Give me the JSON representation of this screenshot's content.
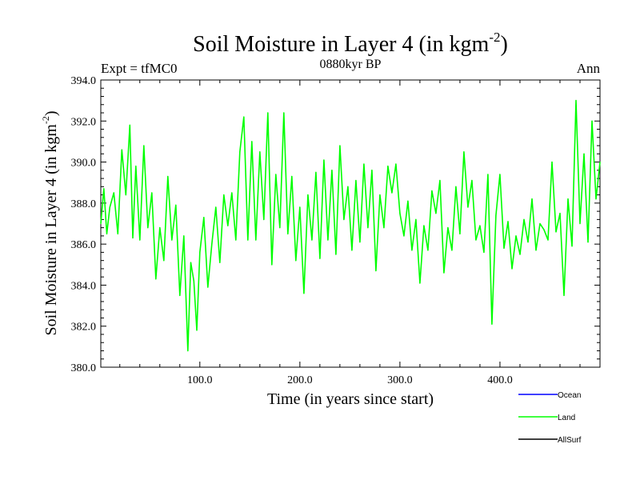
{
  "chart_data": {
    "type": "line",
    "title": "Soil Moisture in Layer 4 (in kgm",
    "title_sup": "-2",
    "title_close": ")",
    "subtitle": "0880kyr BP",
    "left_label": "Expt = tfMC0",
    "right_label": "Ann",
    "xlabel": "Time (in years since start)",
    "ylabel": "Soil Moisture in Layer 4 (in kgm",
    "ylabel_sup": "-2",
    "ylabel_close": ")",
    "xlim": [
      1,
      500
    ],
    "ylim": [
      380,
      394
    ],
    "x_ticks": [
      {
        "value": 100,
        "label": "100.0"
      },
      {
        "value": 200,
        "label": "200.0"
      },
      {
        "value": 300,
        "label": "300.0"
      },
      {
        "value": 400,
        "label": "400.0"
      }
    ],
    "y_ticks": [
      {
        "value": 380,
        "label": "380.0"
      },
      {
        "value": 382,
        "label": "382.0"
      },
      {
        "value": 384,
        "label": "384.0"
      },
      {
        "value": 386,
        "label": "386.0"
      },
      {
        "value": 388,
        "label": "388.0"
      },
      {
        "value": 390,
        "label": "390.0"
      },
      {
        "value": 392,
        "label": "392.0"
      },
      {
        "value": 394,
        "label": "394.0"
      }
    ],
    "legend": [
      {
        "name": "Ocean",
        "color": "#0000ff"
      },
      {
        "name": "Land",
        "color": "#00ff00"
      },
      {
        "name": "AllSurf",
        "color": "#000000"
      }
    ],
    "series": [
      {
        "name": "Land",
        "color": "#00ff00",
        "x": [
          1,
          4,
          7,
          10,
          14,
          18,
          22,
          26,
          30,
          33,
          36,
          40,
          44,
          48,
          52,
          56,
          60,
          64,
          68,
          72,
          76,
          80,
          84,
          88,
          91,
          94,
          97,
          100,
          104,
          108,
          112,
          116,
          120,
          124,
          128,
          132,
          136,
          140,
          144,
          148,
          152,
          156,
          160,
          164,
          168,
          172,
          176,
          180,
          184,
          188,
          192,
          196,
          200,
          204,
          208,
          212,
          216,
          220,
          224,
          228,
          232,
          236,
          240,
          244,
          248,
          252,
          256,
          260,
          264,
          268,
          272,
          276,
          280,
          284,
          288,
          292,
          296,
          300,
          304,
          308,
          312,
          316,
          320,
          324,
          328,
          332,
          336,
          340,
          344,
          348,
          352,
          356,
          360,
          364,
          368,
          372,
          376,
          380,
          384,
          388,
          392,
          396,
          400,
          404,
          408,
          412,
          416,
          420,
          424,
          428,
          432,
          436,
          440,
          444,
          448,
          452,
          456,
          460,
          464,
          468,
          472,
          476,
          480,
          484,
          488,
          492,
          496,
          500
        ],
        "values": [
          387,
          388.7,
          386.5,
          387.8,
          388.5,
          386.5,
          390.6,
          388.4,
          391.8,
          386.3,
          389.8,
          386.2,
          390.8,
          386.8,
          388.5,
          384.3,
          386.8,
          385.2,
          389.3,
          386.2,
          387.9,
          383.5,
          386.4,
          380.8,
          385.1,
          384.2,
          381.8,
          385.6,
          387.3,
          383.9,
          386,
          387.8,
          385.1,
          388.4,
          386.9,
          388.5,
          386.2,
          390.5,
          392.2,
          386.2,
          391,
          386.2,
          390.5,
          387.2,
          392.4,
          385,
          389.4,
          386.8,
          392.4,
          386.5,
          389.3,
          385.2,
          387.8,
          383.6,
          388.4,
          386.2,
          389.5,
          385.3,
          390.1,
          386.2,
          389.6,
          385.5,
          390.8,
          387.2,
          388.8,
          385.7,
          389.1,
          386.1,
          389.9,
          386.8,
          389.6,
          384.7,
          388.4,
          386.8,
          389.8,
          388.5,
          389.9,
          387.5,
          386.4,
          388.1,
          385.7,
          387.2,
          384.1,
          386.9,
          385.7,
          388.6,
          387.5,
          389.1,
          384.6,
          386.8,
          385.7,
          388.8,
          386.5,
          390.5,
          387.8,
          389.1,
          386.2,
          386.9,
          385.6,
          389.4,
          382.1,
          387.4,
          389.4,
          385.8,
          387.1,
          384.8,
          386.4,
          385.5,
          387.2,
          386.1,
          388.2,
          385.7,
          387,
          386.7,
          386.2,
          390,
          386.6,
          387.5,
          383.5,
          388.2,
          385.9,
          393,
          387,
          390.4,
          386.1,
          392,
          388.2,
          390
        ]
      }
    ]
  }
}
